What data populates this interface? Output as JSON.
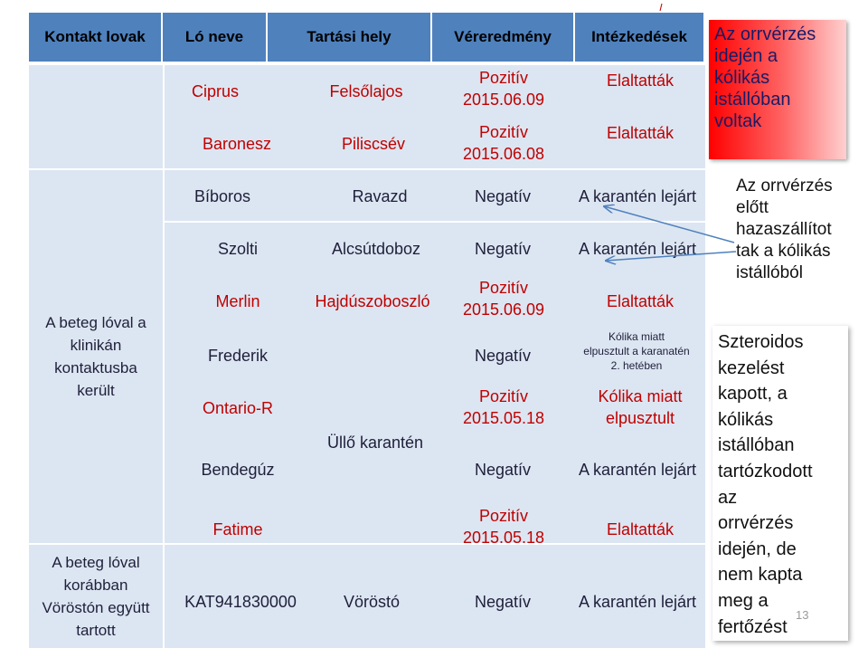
{
  "header": {
    "col1": "Kontakt lovak",
    "col2": "Ló neve",
    "col3": "Tartási hely",
    "col4": "Véreredmény",
    "col5": "Intézkedések"
  },
  "groups": {
    "group1": "A beteg lóval a\nklinikán\nkontaktusba\nkerült",
    "group2": "A beteg lóval\nkorábban\nVöröstón együtt\ntartott"
  },
  "rows": {
    "ciprus": {
      "name": "Ciprus",
      "place": "Felsőlajos",
      "result": "Pozitív\n2015.06.09",
      "action": "Elaltatták"
    },
    "baronesz": {
      "name": "Baronesz",
      "place": "Piliscsév",
      "result": "Pozitív\n2015.06.08",
      "action": "Elaltatták"
    },
    "biboros": {
      "name": "Bíboros",
      "place": "Ravazd",
      "result": "Negatív",
      "action": "A karantén lejárt"
    },
    "szolti": {
      "name": "Szolti",
      "place": "Alcsútdoboz",
      "result": "Negatív",
      "action": "A karantén lejárt"
    },
    "merlin": {
      "name": "Merlin",
      "place": "Hajdúszoboszló",
      "result": "Pozitív\n2015.06.09",
      "action": "Elaltatták"
    },
    "frederik": {
      "name": "Frederik",
      "result": "Negatív",
      "action": "Kólika miatt\nelpusztult a karanatén\n2. hetében"
    },
    "ontario": {
      "name": "Ontario-R",
      "result": "Pozitív\n2015.05.18",
      "action": "Kólika miatt\nelpusztult"
    },
    "bendeguz": {
      "name": "Bendegúz",
      "result": "Negatív",
      "action": "A karantén lejárt"
    },
    "fatime": {
      "name": "Fatime",
      "result": "Pozitív\n2015.05.18",
      "action": "Elaltatták"
    },
    "kat": {
      "name": "KAT941830000",
      "place": "Vöröstó",
      "result": "Negatív",
      "action": "A karantén lejárt"
    }
  },
  "ullo_place": "Üllő karantén",
  "notes": {
    "note1": "Az orrvérzés\nidején a\nkólikás\nistállóban\nvoltak",
    "note2": "Az orrvérzés\nelőtt\nhazaszállítot\ntak a kólikás\nistállóból",
    "note3": "Szteroidos\nkezelést\nkapott, a\nkólikás\nistállóban\ntartózkodott\naz\norrvérzés\nidején, de\nnem kapta\nmeg a\nfertőzést"
  },
  "page_number": "13",
  "colors": {
    "header": "#4f81bd",
    "row_bg": "#dce6f2",
    "red_text": "#c00000",
    "note_red": "#ff0000",
    "arrow": "#4f81bd"
  }
}
